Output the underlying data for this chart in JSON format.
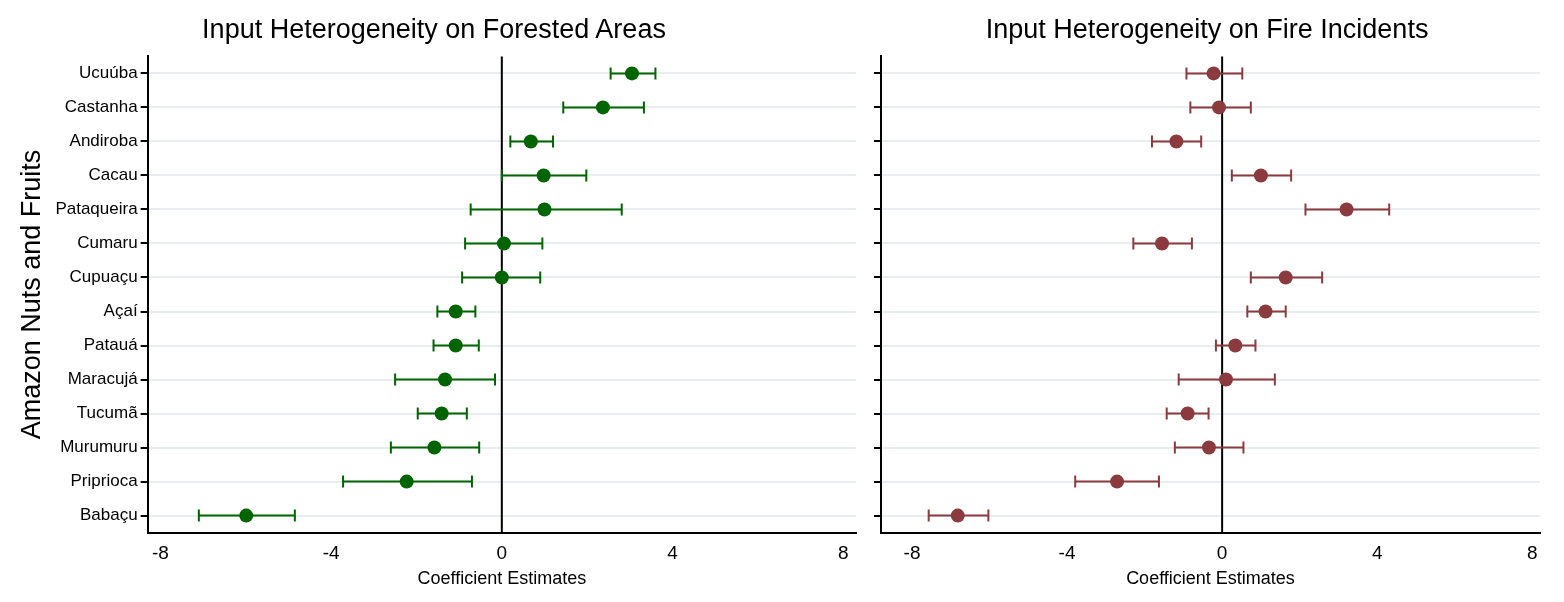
{
  "chart_data": [
    {
      "type": "scatter",
      "orientation": "horizontal",
      "title": "Input Heterogeneity on Forested Areas",
      "xlabel": "Coefficient Estimates",
      "ylabel": "Amazon Nuts and Fruits",
      "categories": [
        "Ucuúba",
        "Castanha",
        "Andiroba",
        "Cacau",
        "Pataqueira",
        "Cumaru",
        "Cupuaçu",
        "Açaí",
        "Patauá",
        "Maracujá",
        "Tucumã",
        "Murumuru",
        "Priprioca",
        "Babaçu"
      ],
      "series": [
        {
          "color": "#006400",
          "values": [
            3.05,
            2.37,
            0.68,
            0.98,
            1.0,
            0.05,
            0,
            -1.08,
            -1.08,
            -1.33,
            -1.41,
            -1.58,
            -2.23,
            -5.99
          ],
          "errors": [
            [
              2.55,
              3.6
            ],
            [
              1.44,
              3.33
            ],
            [
              0.2,
              1.2
            ],
            [
              0,
              1.98
            ],
            [
              -0.73,
              2.81
            ],
            [
              -0.86,
              0.95
            ],
            [
              -0.93,
              0.9
            ],
            [
              -1.51,
              -0.62
            ],
            [
              -1.6,
              -0.54
            ],
            [
              -2.5,
              -0.16
            ],
            [
              -1.97,
              -0.82
            ],
            [
              -2.6,
              -0.53
            ],
            [
              -3.72,
              -0.7
            ],
            [
              -7.1,
              -4.85
            ]
          ]
        }
      ],
      "xlim": [
        -8.3,
        8.3
      ],
      "xticks": [
        -8,
        -4,
        0,
        4,
        8
      ],
      "grid": "y",
      "marker": "circle",
      "ref_lines": [
        {
          "axis": "x",
          "value": 0,
          "color": "#000000"
        }
      ]
    },
    {
      "type": "scatter",
      "orientation": "horizontal",
      "title": "Input Heterogeneity on Fire Incidents",
      "xlabel": "Coefficient Estimates",
      "categories": [
        null,
        null,
        null,
        null,
        null,
        null,
        null,
        null,
        null,
        null,
        null,
        null,
        null,
        null
      ],
      "series": [
        {
          "color": "#8b3a3e",
          "values": [
            -0.22,
            -0.08,
            -1.18,
            1.0,
            3.21,
            -1.55,
            1.64,
            1.12,
            0.34,
            0.1,
            -0.89,
            -0.34,
            -2.71,
            -6.82
          ],
          "errors": [
            [
              -0.92,
              0.52
            ],
            [
              -0.82,
              0.74
            ],
            [
              -1.81,
              -0.54
            ],
            [
              0.25,
              1.78
            ],
            [
              2.15,
              4.31
            ],
            [
              -2.29,
              -0.78
            ],
            [
              0.74,
              2.58
            ],
            [
              0.65,
              1.64
            ],
            [
              -0.16,
              0.86
            ],
            [
              -1.12,
              1.36
            ],
            [
              -1.43,
              -0.35
            ],
            [
              -1.22,
              0.55
            ],
            [
              -3.79,
              -1.63
            ],
            [
              -7.57,
              -6.03
            ]
          ]
        }
      ],
      "xlim": [
        -8.8,
        8.2
      ],
      "xticks": [
        -8,
        -4,
        0,
        4,
        8
      ],
      "grid": "y",
      "marker": "circle",
      "tick_labels": "x",
      "ref_lines": [
        {
          "axis": "x",
          "value": 0,
          "color": "#000000"
        }
      ]
    }
  ]
}
